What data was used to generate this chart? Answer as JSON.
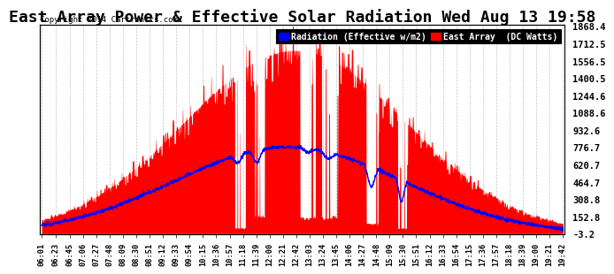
{
  "title": "East Array Power & Effective Solar Radiation Wed Aug 13 19:58",
  "copyright": "Copyright 2014 Cartronics.com",
  "legend_blue": "Radiation (Effective w/m2)",
  "legend_red": "East Array  (DC Watts)",
  "ymin": -3.2,
  "ymax": 1868.4,
  "yticks": [
    -3.2,
    152.8,
    308.8,
    464.7,
    620.7,
    776.7,
    932.6,
    1088.6,
    1244.6,
    1400.5,
    1556.5,
    1712.5,
    1868.4
  ],
  "background_color": "#ffffff",
  "plot_bg_color": "#ffffff",
  "grid_color": "#aaaaaa",
  "bar_color": "#ff0000",
  "line_color": "#0000ff",
  "title_fontsize": 13,
  "xtick_labels": [
    "06:01",
    "06:23",
    "06:45",
    "07:06",
    "07:27",
    "07:48",
    "08:09",
    "08:30",
    "08:51",
    "09:12",
    "09:33",
    "09:54",
    "10:15",
    "10:36",
    "10:57",
    "11:18",
    "11:39",
    "12:00",
    "12:21",
    "12:42",
    "13:03",
    "13:24",
    "13:45",
    "14:06",
    "14:27",
    "14:48",
    "15:09",
    "15:30",
    "15:51",
    "16:12",
    "16:33",
    "16:54",
    "17:15",
    "17:36",
    "17:57",
    "18:18",
    "18:39",
    "19:00",
    "19:21",
    "19:42"
  ]
}
